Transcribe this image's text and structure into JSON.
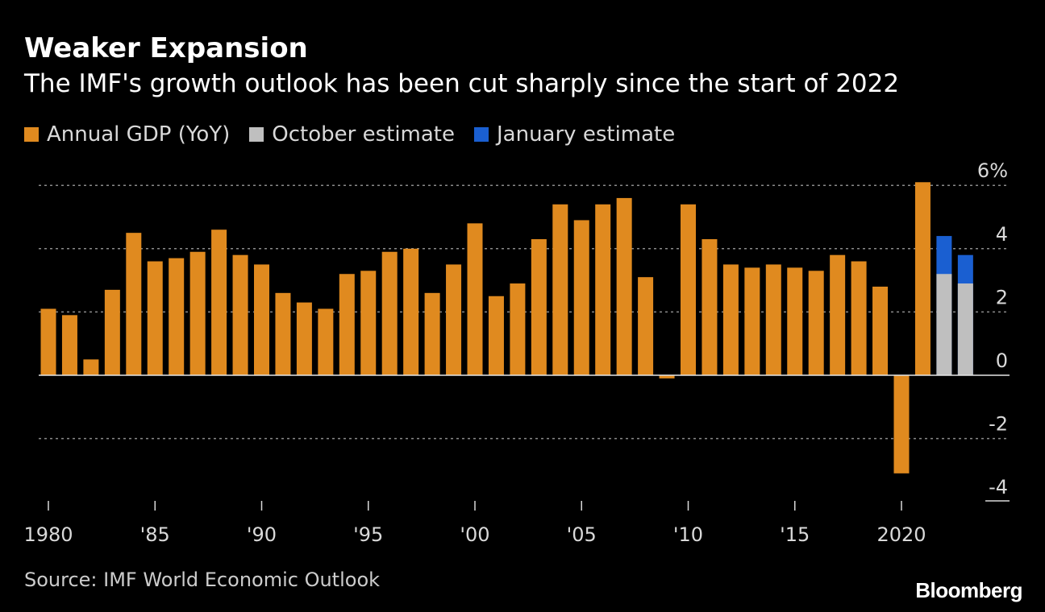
{
  "header": {
    "title": "Weaker Expansion",
    "subtitle": "The IMF's growth outlook has been cut sharply since the start of 2022"
  },
  "legend": [
    {
      "label": "Annual GDP (YoY)",
      "color": "#E08A1F"
    },
    {
      "label": "October estimate",
      "color": "#BFBFBF"
    },
    {
      "label": "January estimate",
      "color": "#1A5FD1"
    }
  ],
  "footer": {
    "source": "Source: IMF World Economic Outlook",
    "brand": "Bloomberg"
  },
  "chart_data": {
    "type": "bar",
    "ylim": [
      -4,
      6
    ],
    "y_ticks": [
      6,
      4,
      2,
      0,
      -2,
      -4
    ],
    "y_tick_labels": [
      "6%",
      "4",
      "2",
      "0",
      "-2",
      "-4"
    ],
    "x_tick_positions": [
      1980,
      1985,
      1990,
      1995,
      2000,
      2005,
      2010,
      2015,
      2020
    ],
    "x_tick_labels": [
      "1980",
      "'85",
      "'90",
      "'95",
      "'00",
      "'05",
      "'10",
      "'15",
      "2020"
    ],
    "grid": true,
    "legend_position": "top-left",
    "colors": {
      "actual": "#E08A1F",
      "october": "#BFBFBF",
      "january": "#1A5FD1"
    },
    "series": [
      {
        "name": "Annual GDP (YoY)",
        "x": [
          1980,
          1981,
          1982,
          1983,
          1984,
          1985,
          1986,
          1987,
          1988,
          1989,
          1990,
          1991,
          1992,
          1993,
          1994,
          1995,
          1996,
          1997,
          1998,
          1999,
          2000,
          2001,
          2002,
          2003,
          2004,
          2005,
          2006,
          2007,
          2008,
          2009,
          2010,
          2011,
          2012,
          2013,
          2014,
          2015,
          2016,
          2017,
          2018,
          2019,
          2020,
          2021
        ],
        "values": [
          2.1,
          1.9,
          0.5,
          2.7,
          4.5,
          3.6,
          3.7,
          3.9,
          4.6,
          3.8,
          3.5,
          2.6,
          2.3,
          2.1,
          3.2,
          3.3,
          3.9,
          4.0,
          2.6,
          3.5,
          4.8,
          2.5,
          2.9,
          4.3,
          5.4,
          4.9,
          5.4,
          5.6,
          3.1,
          -0.1,
          5.4,
          4.3,
          3.5,
          3.4,
          3.5,
          3.4,
          3.3,
          3.8,
          3.6,
          2.8,
          -3.1,
          6.1
        ]
      },
      {
        "name": "October estimate",
        "x": [
          2022,
          2023
        ],
        "values": [
          3.2,
          2.9
        ]
      },
      {
        "name": "January estimate",
        "x": [
          2022,
          2023
        ],
        "values": [
          4.4,
          3.8
        ]
      }
    ]
  }
}
